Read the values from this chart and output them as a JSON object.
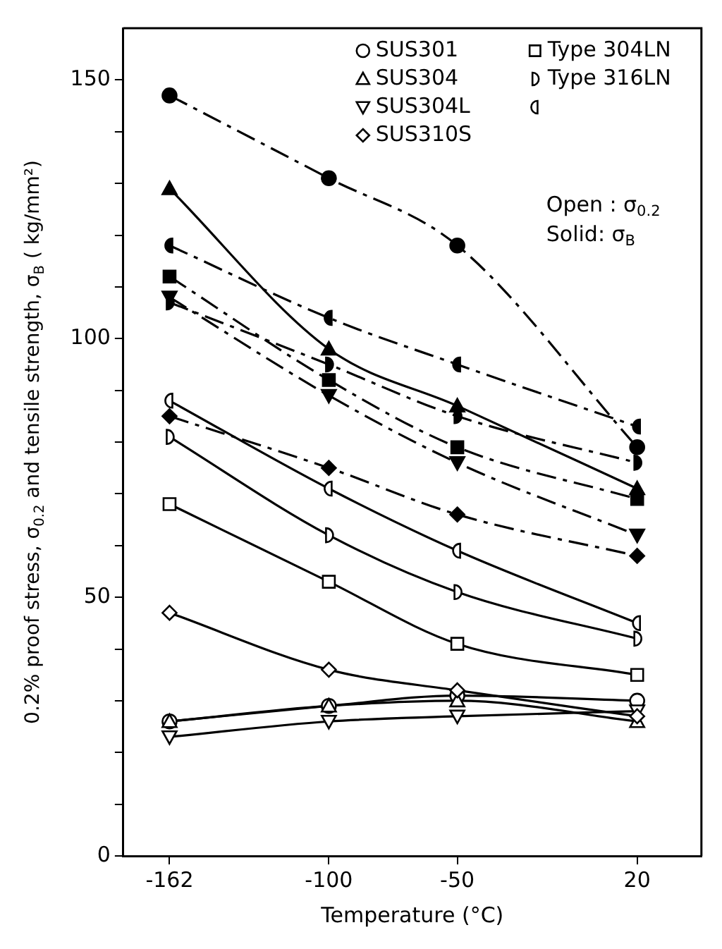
{
  "chart_data": {
    "type": "line",
    "xlabel": "Temperature (°C)",
    "ylabel": "0.2% proof stress, σ$_{0.2}$ and tensile strength, σ$_{B}$ ( kg/mm²)",
    "x": [
      -162,
      -100,
      -50,
      20
    ],
    "xlim": [
      -180,
      45
    ],
    "xticks": [
      -162,
      -100,
      -50,
      20
    ],
    "ylim": [
      0,
      160
    ],
    "yticks": [
      0,
      {
        "value": 10,
        "label": null
      },
      {
        "value": 20,
        "label": null
      },
      {
        "value": 30,
        "label": null
      },
      {
        "value": 40,
        "label": null
      },
      50,
      {
        "value": 60,
        "label": null
      },
      {
        "value": 70,
        "label": null
      },
      {
        "value": 80,
        "label": null
      },
      {
        "value": 90,
        "label": null
      },
      100,
      {
        "value": 110,
        "label": null
      },
      {
        "value": 120,
        "label": null
      },
      {
        "value": 130,
        "label": null
      },
      {
        "value": 140,
        "label": null
      },
      150
    ],
    "grid": false,
    "legend": "top right",
    "annotations": [
      "Open : σ$_{0.2}$",
      "Solid: σ$_{B}$"
    ],
    "series": [
      {
        "name": "SUS301",
        "color": "#000000",
        "marker": "circle-open",
        "line_style": "solid",
        "values": [
          26,
          29,
          31,
          30
        ]
      },
      {
        "name": "SUS304",
        "color": "#000000",
        "marker": "triangle-open",
        "line_style": "solid",
        "values": [
          26,
          29,
          30,
          26
        ]
      },
      {
        "name": "SUS304L",
        "color": "#000000",
        "marker": "triangle-down-open",
        "line_style": "solid",
        "values": [
          23,
          26,
          27,
          28
        ]
      },
      {
        "name": "SUS310S",
        "color": "#000000",
        "marker": "diamond-open",
        "line_style": "solid",
        "values": [
          47,
          36,
          32,
          27
        ]
      },
      {
        "name": "Type 304LN",
        "color": "#000000",
        "marker": "square-open",
        "line_style": "solid",
        "values": [
          68,
          53,
          41,
          35
        ]
      },
      {
        "name": "Type 316LN",
        "color": "#000000",
        "marker": "half-circle-right-open",
        "line_style": "solid",
        "values": [
          81,
          62,
          51,
          42
        ]
      },
      {
        "color": "#000000",
        "marker": "half-circle-left-open",
        "line_style": "solid",
        "values": [
          88,
          71,
          59,
          45
        ]
      },
      {
        "color": "#000000",
        "marker": "circle",
        "line_style": "dashed",
        "values": [
          147,
          131,
          118,
          79
        ]
      },
      {
        "color": "#000000",
        "marker": "half-circle-left",
        "line_style": "dashed",
        "values": [
          118,
          104,
          95,
          83
        ]
      },
      {
        "color": "#000000",
        "marker": "triangle",
        "line_style": "solid",
        "values": [
          129,
          98,
          87,
          71
        ]
      },
      {
        "color": "#000000",
        "marker": "square",
        "line_style": "dashed",
        "values": [
          112,
          92,
          79,
          69
        ]
      },
      {
        "color": "#000000",
        "marker": "half-circle-right",
        "line_style": "dashed",
        "values": [
          107,
          95,
          85,
          76
        ]
      },
      {
        "color": "#000000",
        "marker": "triangle-down",
        "line_style": "dashed",
        "values": [
          108,
          89,
          76,
          62
        ]
      },
      {
        "color": "#000000",
        "marker": "diamond",
        "line_style": "dashed",
        "values": [
          85,
          75,
          66,
          58
        ]
      }
    ]
  }
}
